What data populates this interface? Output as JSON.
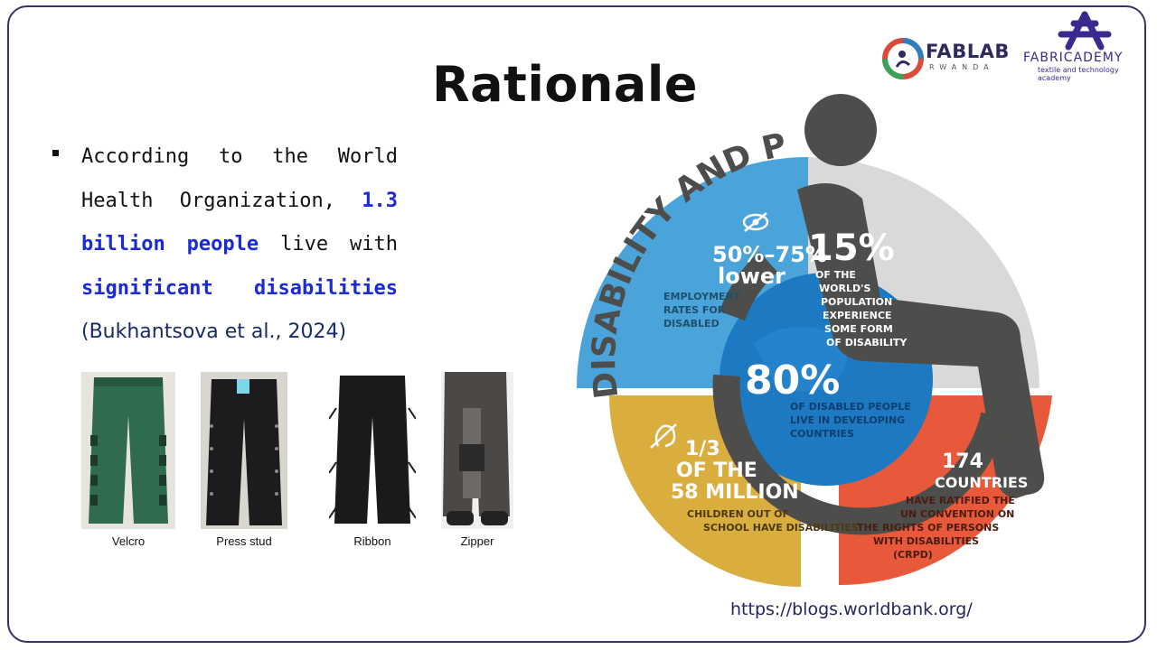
{
  "slide": {
    "title": "Rationale",
    "source_url": "https://blogs.worldbank.org/"
  },
  "logos": {
    "fablab": {
      "name": "FABLAB",
      "subtitle": "RWANDA"
    },
    "fabacademy": {
      "name": "FABRICADEMY",
      "subtitle": "textile and technology academy"
    }
  },
  "bullet": {
    "text_before": "According to the World Health Organization, ",
    "highlight_1": "1.3 billion people",
    "text_mid": " live with ",
    "highlight_2": "significant disabilities",
    "citation": "(Bukhantsova et al., 2024)"
  },
  "garments": [
    {
      "caption": "Velcro",
      "color": "#2f6b4c"
    },
    {
      "caption": "Press stud",
      "color": "#1c1c1e"
    },
    {
      "caption": "Ribbon",
      "color": "#1a1a1a"
    },
    {
      "caption": "Zipper",
      "color": "#4c4845"
    }
  ],
  "infographic": {
    "heading": "DISABILITY AND POVERTY",
    "colors": {
      "blue": "#4aa3d9",
      "grey": "#d9d9d9",
      "yellow": "#d9ad3e",
      "red": "#e8583b",
      "figure": "#4d4e4b",
      "globe": "#1d79c2"
    },
    "stats": {
      "employment_big": "50%–75%",
      "employment_word": "lower",
      "employment_desc_1": "EMPLOYMENT",
      "employment_desc_2": "RATES FOR",
      "employment_desc_3": "DISABLED",
      "population_big": "15%",
      "population_desc_1": "OF THE",
      "population_desc_2": "WORLD'S",
      "population_desc_3": "POPULATION",
      "population_desc_4": "EXPERIENCE",
      "population_desc_5": "SOME FORM",
      "population_desc_6": "OF DISABILITY",
      "developing_big": "80%",
      "developing_desc_1": "OF DISABLED PEOPLE",
      "developing_desc_2": "LIVE IN DEVELOPING",
      "developing_desc_3": "COUNTRIES",
      "children_big_1": "1/3",
      "children_big_2": "OF THE",
      "children_big_3": "58 MILLION",
      "children_desc_1": "CHILDREN OUT OF",
      "children_desc_2": "SCHOOL HAVE DISABILITIES",
      "countries_big_1": "174",
      "countries_big_2": "COUNTRIES",
      "countries_desc_1": "HAVE RATIFIED THE",
      "countries_desc_2": "UN CONVENTION ON",
      "countries_desc_3": "THE RIGHTS OF PERSONS",
      "countries_desc_4": "WITH DISABILITIES",
      "countries_desc_5": "(CRPD)"
    },
    "icons": [
      "eye-slash-icon",
      "deaf-ear-icon"
    ]
  }
}
